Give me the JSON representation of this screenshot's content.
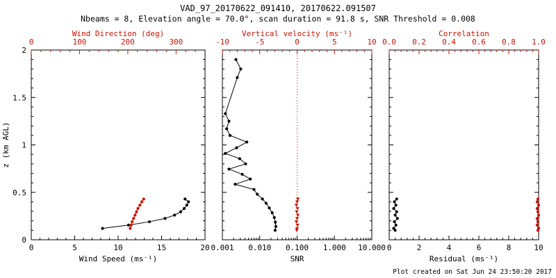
{
  "header": {
    "title": "VAD_97_20170622_091410, 20170622.091507",
    "subtitle": "Nbeams = 8, Elevation angle = 70.0°, scan duration = 91.8 s, SNR Threshold = 0.008"
  },
  "footer": {
    "created": "Plot created on Sat Jun 24 23:50:20 2017"
  },
  "colors": {
    "accent_red": "#cc1100",
    "black": "#000000"
  },
  "ylabel": "z (km AGL)",
  "chart_data": [
    {
      "type": "line",
      "panel": "wind",
      "y_axis": {
        "range": [
          0,
          2
        ],
        "ticks": [
          0,
          0.5,
          1,
          1.5,
          2
        ],
        "tick_labels": [
          "0",
          "0.5",
          "1",
          "1.5",
          "2"
        ],
        "show_labels": true
      },
      "bottom_axis": {
        "label": "Wind Speed (ms⁻¹)",
        "scale": "linear",
        "range": [
          0,
          20
        ],
        "ticks": [
          0,
          5,
          10,
          15,
          20
        ],
        "tick_labels": [
          "0",
          "5",
          "10",
          "15",
          "20"
        ]
      },
      "top_axis": {
        "label": "Wind Direction (deg)",
        "scale": "linear",
        "range": [
          0,
          360
        ],
        "ticks": [
          0,
          100,
          200,
          300
        ],
        "tick_labels": [
          "0",
          "100",
          "200",
          "300"
        ]
      },
      "series": [
        {
          "name": "wind-speed",
          "axis": "bottom",
          "color": "black",
          "line": true,
          "marker": "dot",
          "points": [
            [
              8.2,
              0.12
            ],
            [
              11.2,
              0.155
            ],
            [
              13.6,
              0.19
            ],
            [
              15.4,
              0.225
            ],
            [
              16.5,
              0.26
            ],
            [
              17.2,
              0.295
            ],
            [
              17.6,
              0.33
            ],
            [
              17.9,
              0.365
            ],
            [
              18.1,
              0.4
            ],
            [
              17.7,
              0.43
            ]
          ]
        },
        {
          "name": "wind-direction",
          "axis": "top",
          "color": "red",
          "line": true,
          "marker": "dot",
          "points": [
            [
              205,
              0.12
            ],
            [
              207,
              0.155
            ],
            [
              209,
              0.19
            ],
            [
              212,
              0.225
            ],
            [
              215,
              0.26
            ],
            [
              218,
              0.295
            ],
            [
              221,
              0.33
            ],
            [
              225,
              0.365
            ],
            [
              229,
              0.4
            ],
            [
              233,
              0.43
            ]
          ]
        }
      ],
      "ref_lines": []
    },
    {
      "type": "line",
      "panel": "snr",
      "y_axis": {
        "range": [
          0,
          2
        ],
        "ticks": [
          0,
          0.5,
          1,
          1.5,
          2
        ],
        "tick_labels": [
          "0",
          "0.5",
          "1",
          "1.5",
          "2"
        ],
        "show_labels": false
      },
      "bottom_axis": {
        "label": "SNR",
        "scale": "log",
        "range": [
          0.001,
          10
        ],
        "ticks": [
          0.001,
          0.01,
          0.1,
          1,
          10
        ],
        "tick_labels": [
          "0.001",
          "0.010",
          "0.100",
          "1.000",
          "10.000"
        ]
      },
      "top_axis": {
        "label": "Vertical velocity (ms⁻¹)",
        "scale": "linear",
        "range": [
          -10,
          10
        ],
        "ticks": [
          -10,
          -5,
          0,
          5,
          10
        ],
        "tick_labels": [
          "-10",
          "-5",
          "0",
          "5",
          "10"
        ]
      },
      "series": [
        {
          "name": "snr-profile",
          "axis": "bottom",
          "color": "black",
          "line": true,
          "marker": "dot",
          "points": [
            [
              0.0023,
              1.9
            ],
            [
              0.0031,
              1.8
            ],
            [
              0.0025,
              1.71
            ],
            [
              0.0012,
              1.33
            ],
            [
              0.0015,
              1.25
            ],
            [
              0.0013,
              1.17
            ],
            [
              0.0016,
              1.1
            ],
            [
              0.0045,
              1.03
            ],
            [
              0.0024,
              0.97
            ],
            [
              0.0012,
              0.91
            ],
            [
              0.0029,
              0.855
            ],
            [
              0.0042,
              0.8
            ],
            [
              0.0015,
              0.745
            ],
            [
              0.0034,
              0.69
            ],
            [
              0.0056,
              0.64
            ],
            [
              0.0022,
              0.585
            ],
            [
              0.007,
              0.53
            ],
            [
              0.0086,
              0.48
            ],
            [
              0.0118,
              0.43
            ],
            [
              0.0148,
              0.385
            ],
            [
              0.018,
              0.335
            ],
            [
              0.0215,
              0.285
            ],
            [
              0.0245,
              0.235
            ],
            [
              0.0262,
              0.185
            ],
            [
              0.027,
              0.14
            ],
            [
              0.0258,
              0.1
            ]
          ]
        },
        {
          "name": "vertical-velocity",
          "axis": "top",
          "color": "red",
          "line": false,
          "marker": "triangle-down",
          "points": [
            [
              0.1,
              0.43
            ],
            [
              0.0,
              0.4
            ],
            [
              -0.1,
              0.365
            ],
            [
              0.05,
              0.33
            ],
            [
              -0.05,
              0.295
            ],
            [
              0.1,
              0.26
            ],
            [
              0.0,
              0.225
            ],
            [
              -0.1,
              0.19
            ],
            [
              0.05,
              0.155
            ],
            [
              0.0,
              0.12
            ],
            [
              -0.05,
              0.1
            ]
          ]
        }
      ],
      "ref_lines": [
        {
          "axis": "top",
          "value": 0,
          "color": "red",
          "style": "dotted"
        }
      ]
    },
    {
      "type": "line",
      "panel": "residual",
      "y_axis": {
        "range": [
          0,
          2
        ],
        "ticks": [
          0,
          0.5,
          1,
          1.5,
          2
        ],
        "tick_labels": [
          "0",
          "0.5",
          "1",
          "1.5",
          "2"
        ],
        "show_labels": false
      },
      "bottom_axis": {
        "label": "Residual (ms⁻¹)",
        "scale": "linear",
        "range": [
          0,
          10
        ],
        "ticks": [
          0,
          2,
          4,
          6,
          8,
          10
        ],
        "tick_labels": [
          "0",
          "2",
          "4",
          "6",
          "8",
          "10"
        ]
      },
      "top_axis": {
        "label": "Correlation",
        "scale": "linear",
        "range": [
          0,
          1
        ],
        "ticks": [
          0,
          0.2,
          0.4,
          0.6,
          0.8,
          1
        ],
        "tick_labels": [
          "0.0",
          "0.2",
          "0.4",
          "0.6",
          "0.8",
          "1.0"
        ]
      },
      "series": [
        {
          "name": "residual-profile",
          "axis": "bottom",
          "color": "black",
          "line": true,
          "marker": "dot",
          "points": [
            [
              0.5,
              0.43
            ],
            [
              0.35,
              0.4
            ],
            [
              0.45,
              0.365
            ],
            [
              0.3,
              0.33
            ],
            [
              0.5,
              0.295
            ],
            [
              0.4,
              0.26
            ],
            [
              0.55,
              0.225
            ],
            [
              0.35,
              0.19
            ],
            [
              0.45,
              0.155
            ],
            [
              0.3,
              0.12
            ],
            [
              0.4,
              0.1
            ]
          ]
        },
        {
          "name": "correlation-profile",
          "axis": "top",
          "color": "red",
          "line": true,
          "marker": "dot",
          "points": [
            [
              0.995,
              0.43
            ],
            [
              0.99,
              0.4
            ],
            [
              1.0,
              0.365
            ],
            [
              0.99,
              0.33
            ],
            [
              0.995,
              0.295
            ],
            [
              1.0,
              0.26
            ],
            [
              0.99,
              0.225
            ],
            [
              0.995,
              0.19
            ],
            [
              0.99,
              0.155
            ],
            [
              1.0,
              0.12
            ],
            [
              0.995,
              0.1
            ]
          ]
        }
      ],
      "ref_lines": []
    }
  ]
}
